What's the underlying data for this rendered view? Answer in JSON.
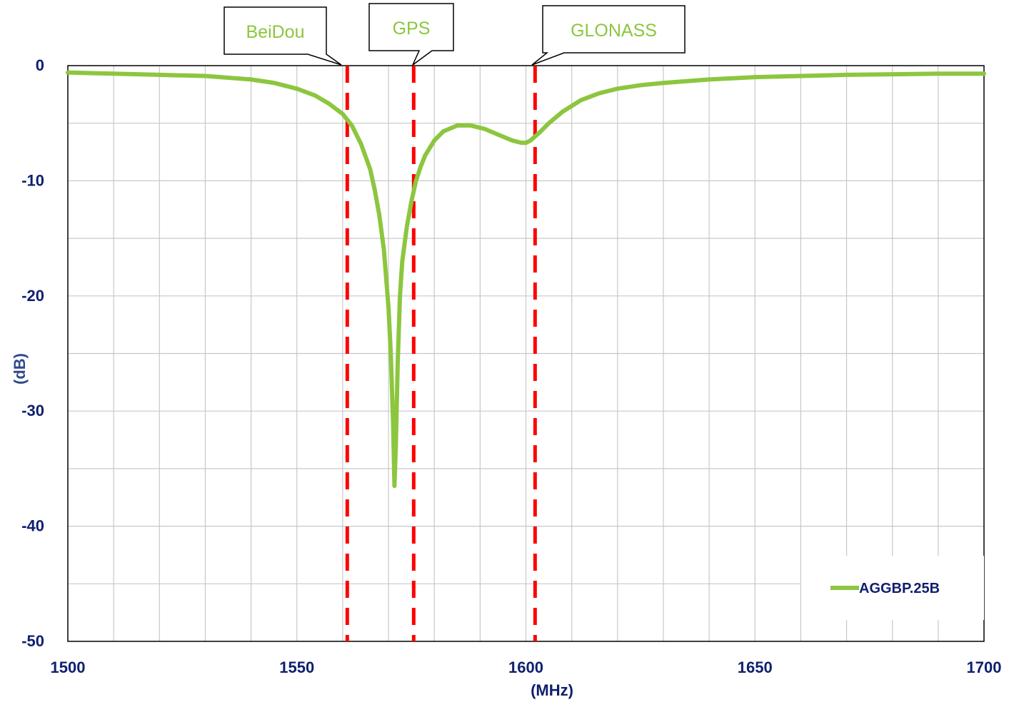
{
  "chart_data": {
    "type": "line",
    "title": "",
    "xlabel": "(MHz)",
    "ylabel": "(dB)",
    "xlim": [
      1500,
      1700
    ],
    "ylim": [
      -50,
      0
    ],
    "x_ticks": [
      "1500",
      "1550",
      "1600",
      "1650",
      "1700"
    ],
    "y_ticks": [
      "0",
      "-10",
      "-20",
      "-30",
      "-40",
      "-50"
    ],
    "grid": true,
    "legend_position": "bottom-right",
    "series": [
      {
        "name": "AGGBP.25B",
        "color": "#8cc63f",
        "x": [
          1500,
          1510,
          1520,
          1530,
          1540,
          1545,
          1550,
          1554,
          1557,
          1560,
          1562,
          1564,
          1566,
          1567,
          1568,
          1569,
          1570,
          1570.5,
          1571,
          1571.3,
          1571.6,
          1572,
          1572.5,
          1573,
          1574,
          1575,
          1576,
          1577,
          1578,
          1580,
          1582,
          1585,
          1588,
          1591,
          1594,
          1597,
          1599,
          1600,
          1601,
          1603,
          1605,
          1608,
          1612,
          1616,
          1620,
          1625,
          1630,
          1640,
          1650,
          1660,
          1670,
          1680,
          1690,
          1700
        ],
        "y": [
          -0.6,
          -0.7,
          -0.8,
          -0.9,
          -1.2,
          -1.5,
          -2.0,
          -2.6,
          -3.3,
          -4.2,
          -5.2,
          -6.8,
          -9.0,
          -10.8,
          -13.0,
          -16.0,
          -21.0,
          -25.0,
          -31.0,
          -36.5,
          -33.0,
          -26.0,
          -20.0,
          -17.0,
          -14.0,
          -11.8,
          -10.0,
          -8.8,
          -7.8,
          -6.5,
          -5.7,
          -5.2,
          -5.2,
          -5.5,
          -6.0,
          -6.5,
          -6.7,
          -6.7,
          -6.5,
          -5.8,
          -5.0,
          -4.0,
          -3.0,
          -2.4,
          -2.0,
          -1.7,
          -1.5,
          -1.2,
          -1.0,
          -0.9,
          -0.8,
          -0.75,
          -0.7,
          -0.7
        ]
      }
    ],
    "markers": [
      {
        "label": "BeiDou",
        "x": 1561,
        "color": "#ff0000"
      },
      {
        "label": "GPS",
        "x": 1575.5,
        "color": "#ff0000"
      },
      {
        "label": "GLONASS",
        "x": 1602,
        "color": "#ff0000"
      }
    ]
  }
}
